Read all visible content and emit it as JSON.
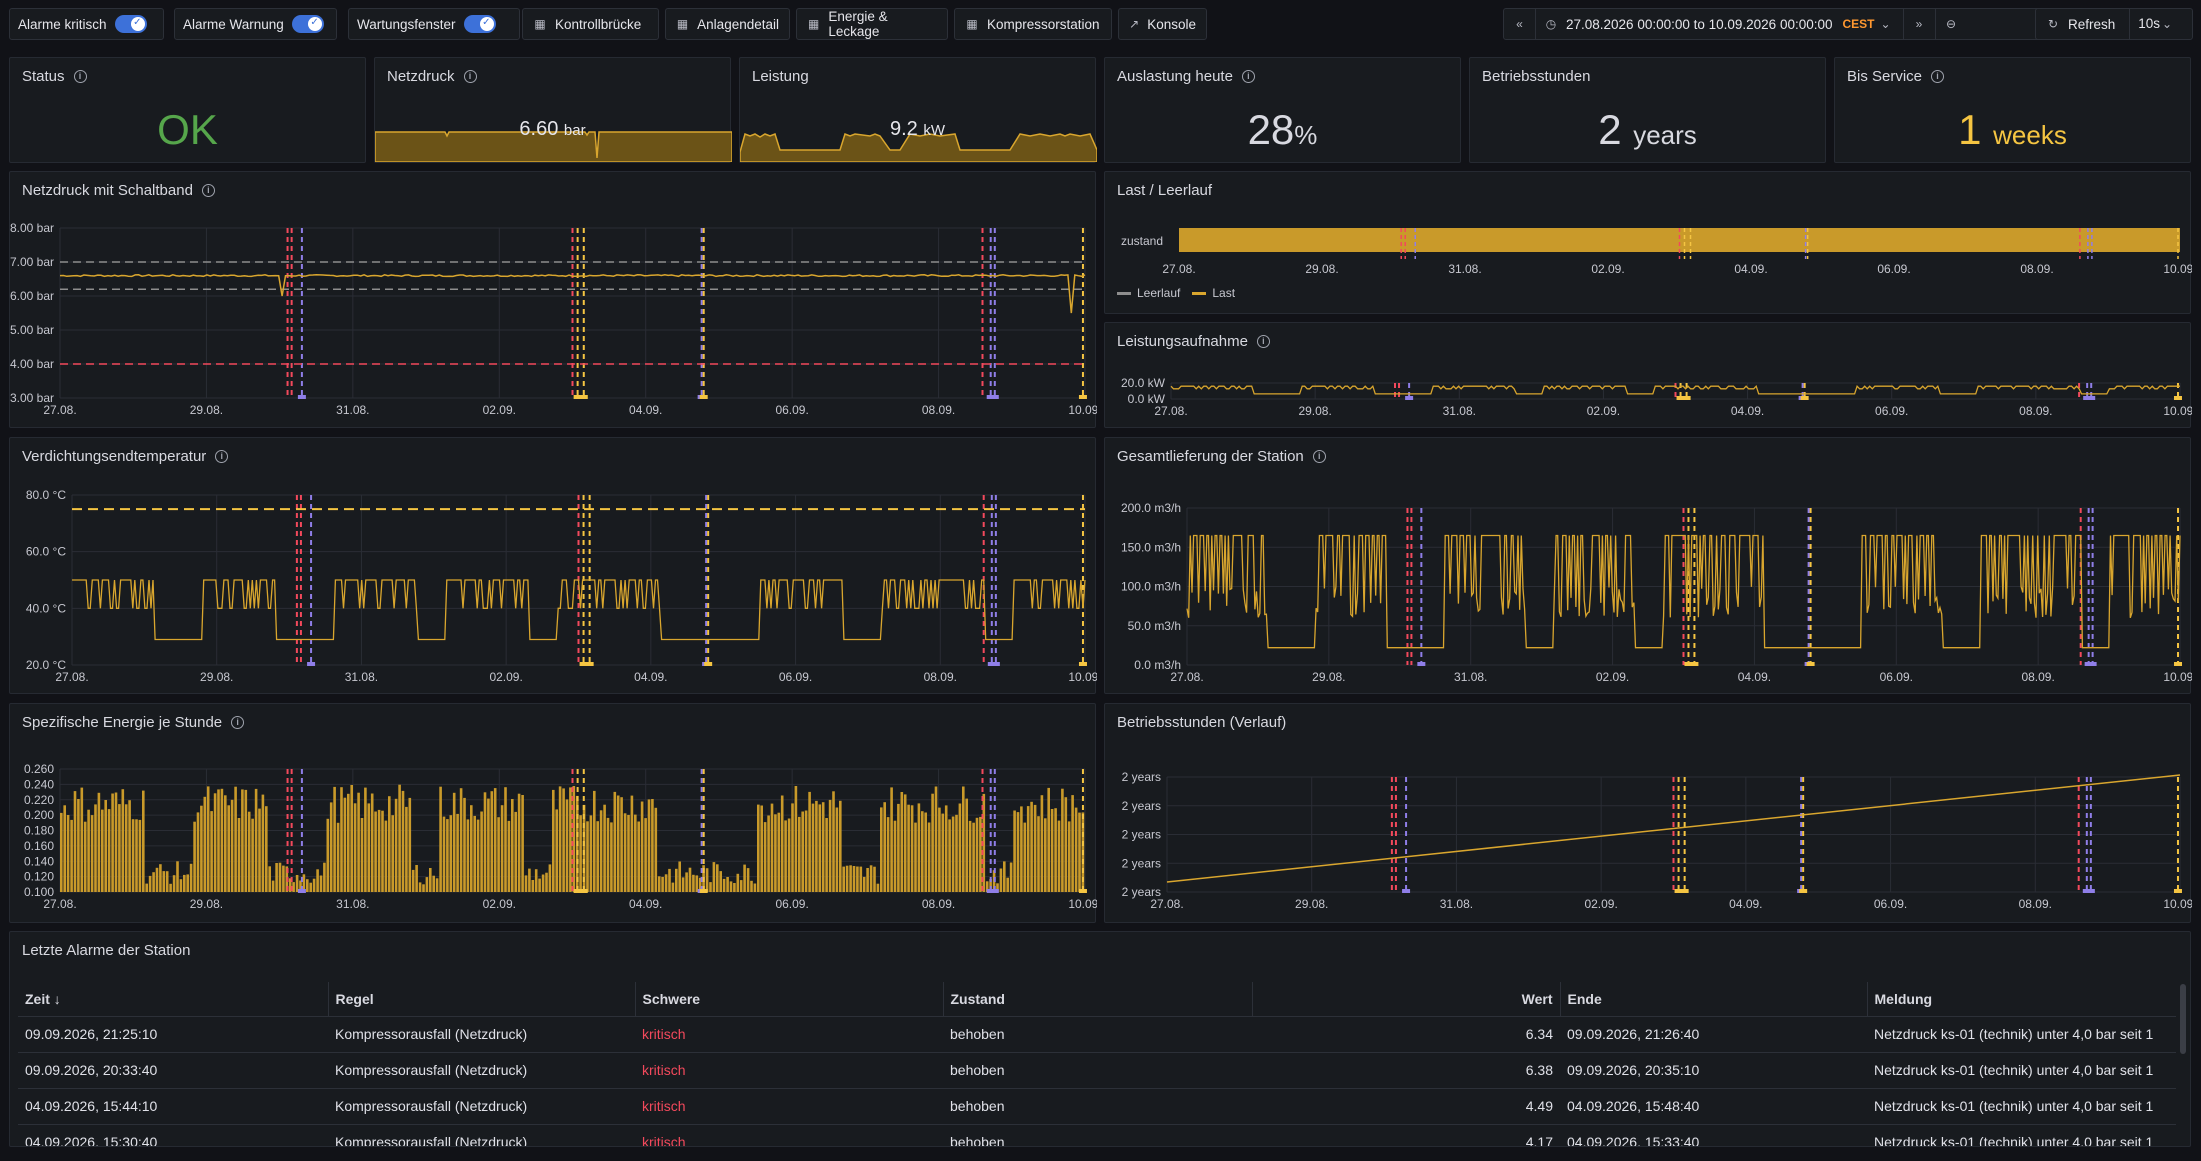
{
  "toolbar": {
    "alarm_crit": "Alarme kritisch",
    "alarm_warn": "Alarme Warnung",
    "maint": "Wartungsfenster",
    "links": [
      "Kontrollbrücke",
      "Anlagendetail",
      "Energie & Leckage",
      "Kompressorstation",
      "Konsole"
    ],
    "time_range": "27.08.2026 00:00:00 to 10.09.2026 00:00:00",
    "tz": "CEST",
    "refresh": "Refresh",
    "interval": "10s"
  },
  "stats": {
    "status": {
      "title": "Status",
      "value": "OK"
    },
    "netzdruck": {
      "title": "Netzdruck",
      "value": "6.60",
      "unit": "bar"
    },
    "leistung": {
      "title": "Leistung",
      "value": "9.2",
      "unit": "kW"
    },
    "auslastung": {
      "title": "Auslastung heute",
      "value": "28",
      "unit": "%"
    },
    "betrieb": {
      "title": "Betriebsstunden",
      "value": "2",
      "unit": "years"
    },
    "service": {
      "title": "Bis Service",
      "value": "1",
      "unit": "weeks"
    }
  },
  "panels": {
    "p1": {
      "title": "Netzdruck mit Schaltband",
      "yticks": [
        "8.00 bar",
        "7.00 bar",
        "6.00 bar",
        "5.00 bar",
        "4.00 bar",
        "3.00 bar"
      ]
    },
    "p2": {
      "title": "Last / Leerlauf",
      "row": "zustand",
      "legend1": "Leerlauf",
      "legend2": "Last"
    },
    "p3": {
      "title": "Leistungsaufnahme",
      "yticks": [
        "20.0 kW",
        "0.0 kW"
      ]
    },
    "p4": {
      "title": "Verdichtungsendtemperatur",
      "yticks": [
        "80.0 °C",
        "60.0 °C",
        "40.0 °C",
        "20.0 °C"
      ]
    },
    "p5": {
      "title": "Gesamtlieferung der Station",
      "yticks": [
        "200.0 m3/h",
        "150.0 m3/h",
        "100.0 m3/h",
        "50.0 m3/h",
        "0.0 m3/h"
      ]
    },
    "p6": {
      "title": "Spezifische Energie je Stunde",
      "yticks": [
        "0.260",
        "0.240",
        "0.220",
        "0.200",
        "0.180",
        "0.160",
        "0.140",
        "0.120",
        "0.100"
      ]
    },
    "p7": {
      "title": "Betriebsstunden (Verlauf)",
      "yticks": [
        "2 years",
        "2 years",
        "2 years",
        "2 years",
        "2 years"
      ]
    }
  },
  "xticks": [
    "27.08.",
    "29.08.",
    "31.08.",
    "02.09.",
    "04.09.",
    "06.09.",
    "08.09.",
    "10.09."
  ],
  "colors": {
    "accent": "#f5c542",
    "series": "#d9a62e",
    "ok": "#56a64b",
    "crit": "#f2495c",
    "purple": "#8f7ee8"
  },
  "table": {
    "title": "Letzte Alarme der Station",
    "headers": [
      "Zeit ↓",
      "Regel",
      "Schwere",
      "Zustand",
      "Wert",
      "Ende",
      "Meldung"
    ],
    "rows": [
      [
        "09.09.2026, 21:25:10",
        "Kompressorausfall (Netzdruck)",
        "kritisch",
        "behoben",
        "6.34",
        "09.09.2026, 21:26:40",
        "Netzdruck ks-01 (technik) unter 4,0 bar seit 1"
      ],
      [
        "09.09.2026, 20:33:40",
        "Kompressorausfall (Netzdruck)",
        "kritisch",
        "behoben",
        "6.38",
        "09.09.2026, 20:35:10",
        "Netzdruck ks-01 (technik) unter 4,0 bar seit 1"
      ],
      [
        "04.09.2026, 15:44:10",
        "Kompressorausfall (Netzdruck)",
        "kritisch",
        "behoben",
        "4.49",
        "04.09.2026, 15:48:40",
        "Netzdruck ks-01 (technik) unter 4,0 bar seit 1"
      ],
      [
        "04.09.2026, 15:30:40",
        "Kompressorausfall (Netzdruck)",
        "kritisch",
        "behoben",
        "4.17",
        "04.09.2026, 15:33:40",
        "Netzdruck ks-01 (technik) unter 4,0 bar seit 1"
      ]
    ]
  }
}
